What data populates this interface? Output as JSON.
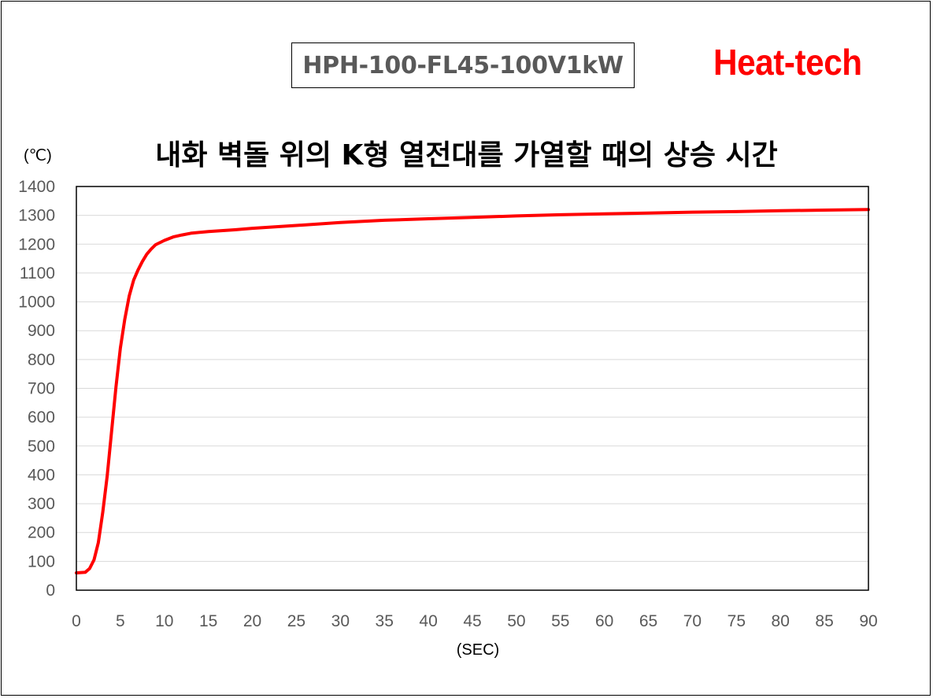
{
  "header": {
    "model": "HPH-100-FL45-100V1kW",
    "brand": "Heat-tech",
    "brand_color": "#ff0000"
  },
  "chart_data": {
    "type": "line",
    "title": "내화 벽돌 위의 K형 열전대를 가열할 때의 상승 시간",
    "xlabel": "(SEC)",
    "ylabel": "(℃)",
    "xlim": [
      0,
      90
    ],
    "ylim": [
      0,
      1400
    ],
    "xticks": [
      0,
      5,
      10,
      15,
      20,
      25,
      30,
      35,
      40,
      45,
      50,
      55,
      60,
      65,
      70,
      75,
      80,
      85,
      90
    ],
    "yticks": [
      0,
      100,
      200,
      300,
      400,
      500,
      600,
      700,
      800,
      900,
      1000,
      1100,
      1200,
      1300,
      1400
    ],
    "grid": true,
    "legend": "none",
    "series": [
      {
        "color": "#ff0000",
        "x": [
          0,
          1,
          1.5,
          2,
          2.5,
          3,
          3.5,
          4,
          4.5,
          5,
          5.5,
          6,
          6.5,
          7,
          7.5,
          8,
          8.5,
          9,
          10,
          11,
          12,
          13,
          15,
          18,
          20,
          25,
          30,
          35,
          40,
          45,
          50,
          55,
          60,
          65,
          70,
          75,
          80,
          85,
          90
        ],
        "y": [
          60,
          62,
          75,
          105,
          165,
          270,
          395,
          550,
          705,
          840,
          940,
          1020,
          1075,
          1110,
          1140,
          1165,
          1183,
          1198,
          1213,
          1225,
          1232,
          1238,
          1244,
          1250,
          1255,
          1265,
          1275,
          1283,
          1288,
          1293,
          1298,
          1302,
          1305,
          1308,
          1311,
          1313,
          1316,
          1318,
          1320
        ]
      }
    ]
  }
}
